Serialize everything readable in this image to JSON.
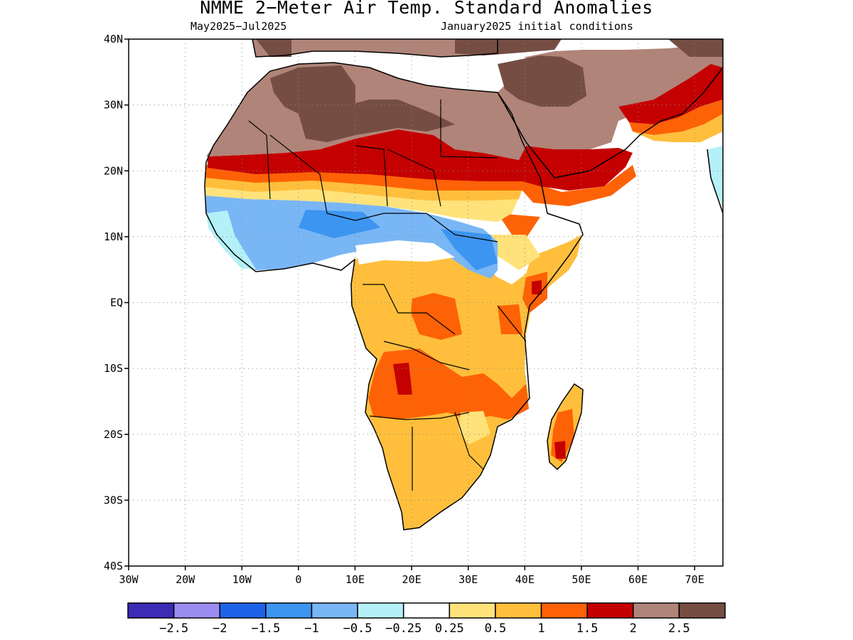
{
  "title": "NMME 2−Meter Air Temp. Standard Anomalies",
  "subtitle_left": "May2025−Jul2025",
  "subtitle_right": "January2025 initial conditions",
  "map": {
    "lon_range": [
      -30,
      75
    ],
    "lat_range": [
      -40,
      40
    ],
    "lon_ticks": [
      {
        "value": -30,
        "label": "30W"
      },
      {
        "value": -20,
        "label": "20W"
      },
      {
        "value": -10,
        "label": "10W"
      },
      {
        "value": 0,
        "label": "0"
      },
      {
        "value": 10,
        "label": "10E"
      },
      {
        "value": 20,
        "label": "20E"
      },
      {
        "value": 30,
        "label": "30E"
      },
      {
        "value": 40,
        "label": "40E"
      },
      {
        "value": 50,
        "label": "50E"
      },
      {
        "value": 60,
        "label": "60E"
      },
      {
        "value": 70,
        "label": "70E"
      }
    ],
    "lat_ticks": [
      {
        "value": 40,
        "label": "40N"
      },
      {
        "value": 30,
        "label": "30N"
      },
      {
        "value": 20,
        "label": "20N"
      },
      {
        "value": 10,
        "label": "10N"
      },
      {
        "value": 0,
        "label": "EQ"
      },
      {
        "value": -10,
        "label": "10S"
      },
      {
        "value": -20,
        "label": "20S"
      },
      {
        "value": -30,
        "label": "30S"
      },
      {
        "value": -40,
        "label": "40S"
      }
    ],
    "grid": true,
    "grid_style": "dotted"
  },
  "colorbar": {
    "bins": [
      {
        "color": "#3b2bb5"
      },
      {
        "color": "#9b8cf2"
      },
      {
        "color": "#1e62e8"
      },
      {
        "color": "#3c95f0"
      },
      {
        "color": "#79b6f5"
      },
      {
        "color": "#b4f0f8"
      },
      {
        "color": "#ffffff"
      },
      {
        "color": "#ffe27a"
      },
      {
        "color": "#ffbf3c"
      },
      {
        "color": "#fd6206"
      },
      {
        "color": "#c40000"
      },
      {
        "color": "#b08478"
      },
      {
        "color": "#754d43"
      }
    ],
    "labels": [
      "−2.5",
      "−2",
      "−1.5",
      "−1",
      "−0.5",
      "−0.25",
      "0.25",
      "0.5",
      "1",
      "1.5",
      "2",
      "2.5"
    ]
  },
  "anomaly_regions": [
    {
      "name": "saharan-arabian-brown",
      "value": "2 to 2.5",
      "color": "#b08478"
    },
    {
      "name": "saharan-dark-brown",
      "value": ">2.5",
      "color": "#754d43"
    },
    {
      "name": "sahel-red-band",
      "value": "1.5 to 2",
      "color": "#c40000"
    },
    {
      "name": "west-africa-blue",
      "value": "-1 to -0.5",
      "color": "#79b6f5"
    },
    {
      "name": "southern-africa-orange",
      "value": "0.5 to 1",
      "color": "#ffbf3c"
    }
  ]
}
